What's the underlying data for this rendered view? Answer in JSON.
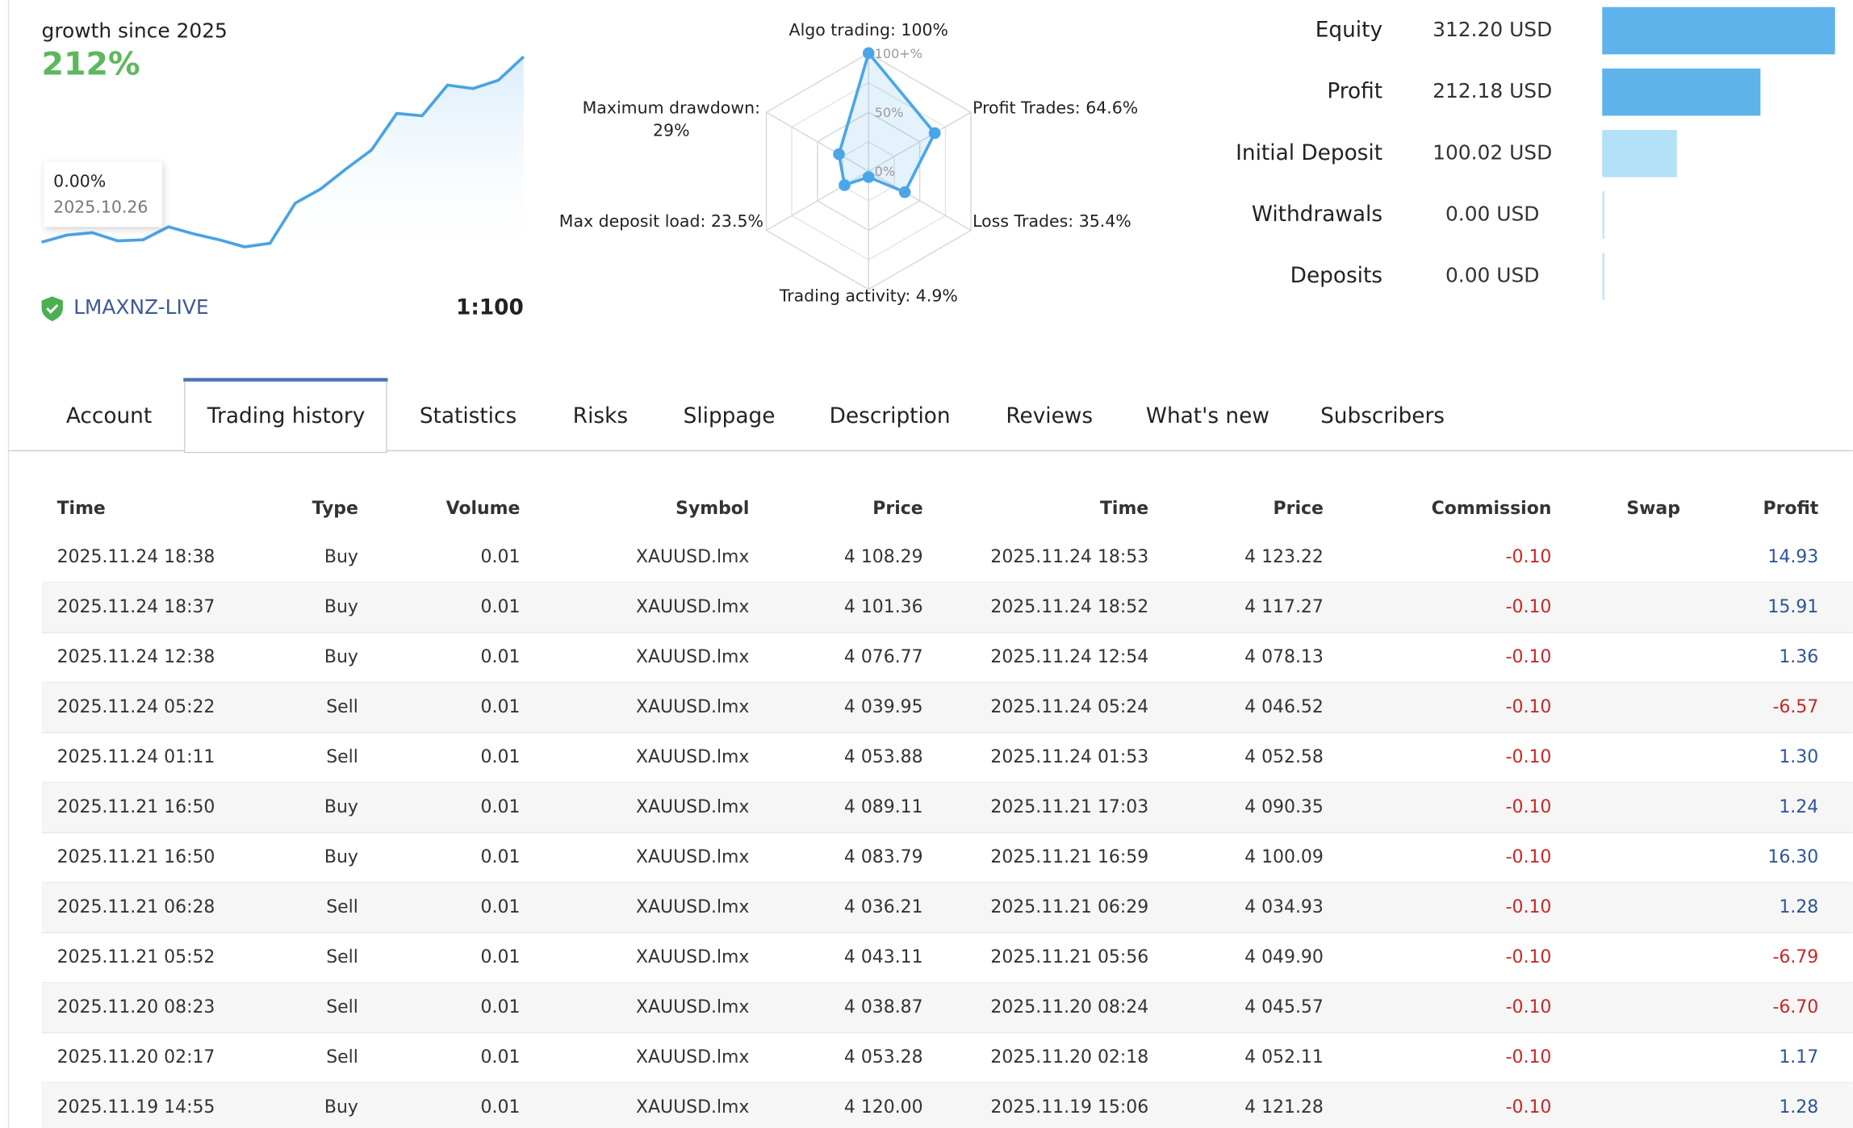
{
  "growth": {
    "title": "growth since 2025",
    "value": "212%",
    "values": [
      0,
      8.1,
      10.8,
      1.5,
      2.7,
      17.6,
      9.5,
      2.7,
      -5.4,
      -1.4,
      44.6,
      60.8,
      83.7,
      105.3,
      147.2,
      144.5,
      179.6,
      175.5,
      185,
      212
    ],
    "color": "#4aa3e3",
    "tooltip": {
      "value": "0.00%",
      "date": "2025.10.26"
    },
    "server": "LMAXNZ-LIVE",
    "leverage": "1:100"
  },
  "radar": {
    "axes": [
      {
        "label": [
          "Algo trading: 100%"
        ],
        "value": 100
      },
      {
        "label": [
          "Profit Trades: 64.6%"
        ],
        "value": 64.6
      },
      {
        "label": [
          "Loss Trades: 35.4%"
        ],
        "value": 35.4
      },
      {
        "label": [
          "Trading activity: 4.9%"
        ],
        "value": 4.9
      },
      {
        "label": [
          "Max deposit load: 23.5%"
        ],
        "value": 23.5
      },
      {
        "label": [
          "Maximum drawdown:",
          "29%"
        ],
        "value": 29
      }
    ],
    "ticks": [
      {
        "value": 0,
        "label": "0%"
      },
      {
        "value": 50,
        "label": "50%"
      },
      {
        "value": 100,
        "label": "100+%"
      }
    ],
    "color": "#4aa6e8"
  },
  "balance": {
    "labels": [
      "Equity",
      "Profit",
      "Initial Deposit",
      "Withdrawals",
      "Deposits"
    ],
    "values": [
      312.2,
      212.18,
      100.02,
      0,
      0
    ],
    "value_labels": [
      "312.20 USD",
      "212.18 USD",
      "100.02 USD",
      "0.00 USD",
      "0.00 USD"
    ],
    "colors": [
      "#5db3ea",
      "#5db3ea",
      "#b3e1f7",
      "#cfe6f5",
      "#cfe6f5"
    ]
  },
  "tabs": {
    "items": [
      "Account",
      "Trading history",
      "Statistics",
      "Risks",
      "Slippage",
      "Description",
      "Reviews",
      "What's new",
      "Subscribers"
    ],
    "active": 1
  },
  "table": {
    "columns": [
      "Time",
      "Type",
      "Volume",
      "Symbol",
      "Price",
      "Time",
      "Price",
      "Commission",
      "Swap",
      "Profit"
    ],
    "rows": [
      {
        "open_time": "2025.11.24 18:38",
        "type": "Buy",
        "volume": "0.01",
        "symbol": "XAUUSD.lmx",
        "open_price": "4 108.29",
        "close_time": "2025.11.24 18:53",
        "close_price": "4 123.22",
        "commission": "-0.10",
        "profit": "14.93"
      },
      {
        "open_time": "2025.11.24 18:37",
        "type": "Buy",
        "volume": "0.01",
        "symbol": "XAUUSD.lmx",
        "open_price": "4 101.36",
        "close_time": "2025.11.24 18:52",
        "close_price": "4 117.27",
        "commission": "-0.10",
        "profit": "15.91"
      },
      {
        "open_time": "2025.11.24 12:38",
        "type": "Buy",
        "volume": "0.01",
        "symbol": "XAUUSD.lmx",
        "open_price": "4 076.77",
        "close_time": "2025.11.24 12:54",
        "close_price": "4 078.13",
        "commission": "-0.10",
        "profit": "1.36"
      },
      {
        "open_time": "2025.11.24 05:22",
        "type": "Sell",
        "volume": "0.01",
        "symbol": "XAUUSD.lmx",
        "open_price": "4 039.95",
        "close_time": "2025.11.24 05:24",
        "close_price": "4 046.52",
        "commission": "-0.10",
        "profit": "-6.57"
      },
      {
        "open_time": "2025.11.24 01:11",
        "type": "Sell",
        "volume": "0.01",
        "symbol": "XAUUSD.lmx",
        "open_price": "4 053.88",
        "close_time": "2025.11.24 01:53",
        "close_price": "4 052.58",
        "commission": "-0.10",
        "profit": "1.30"
      },
      {
        "open_time": "2025.11.21 16:50",
        "type": "Buy",
        "volume": "0.01",
        "symbol": "XAUUSD.lmx",
        "open_price": "4 089.11",
        "close_time": "2025.11.21 17:03",
        "close_price": "4 090.35",
        "commission": "-0.10",
        "profit": "1.24"
      },
      {
        "open_time": "2025.11.21 16:50",
        "type": "Buy",
        "volume": "0.01",
        "symbol": "XAUUSD.lmx",
        "open_price": "4 083.79",
        "close_time": "2025.11.21 16:59",
        "close_price": "4 100.09",
        "commission": "-0.10",
        "profit": "16.30"
      },
      {
        "open_time": "2025.11.21 06:28",
        "type": "Sell",
        "volume": "0.01",
        "symbol": "XAUUSD.lmx",
        "open_price": "4 036.21",
        "close_time": "2025.11.21 06:29",
        "close_price": "4 034.93",
        "commission": "-0.10",
        "profit": "1.28"
      },
      {
        "open_time": "2025.11.21 05:52",
        "type": "Sell",
        "volume": "0.01",
        "symbol": "XAUUSD.lmx",
        "open_price": "4 043.11",
        "close_time": "2025.11.21 05:56",
        "close_price": "4 049.90",
        "commission": "-0.10",
        "profit": "-6.79"
      },
      {
        "open_time": "2025.11.20 08:23",
        "type": "Sell",
        "volume": "0.01",
        "symbol": "XAUUSD.lmx",
        "open_price": "4 038.87",
        "close_time": "2025.11.20 08:24",
        "close_price": "4 045.57",
        "commission": "-0.10",
        "profit": "-6.70"
      },
      {
        "open_time": "2025.11.20 02:17",
        "type": "Sell",
        "volume": "0.01",
        "symbol": "XAUUSD.lmx",
        "open_price": "4 053.28",
        "close_time": "2025.11.20 02:18",
        "close_price": "4 052.11",
        "commission": "-0.10",
        "profit": "1.17"
      },
      {
        "open_time": "2025.11.19 14:55",
        "type": "Buy",
        "volume": "0.01",
        "symbol": "XAUUSD.lmx",
        "open_price": "4 120.00",
        "close_time": "2025.11.19 15:06",
        "close_price": "4 121.28",
        "commission": "-0.10",
        "profit": "1.28"
      }
    ]
  }
}
